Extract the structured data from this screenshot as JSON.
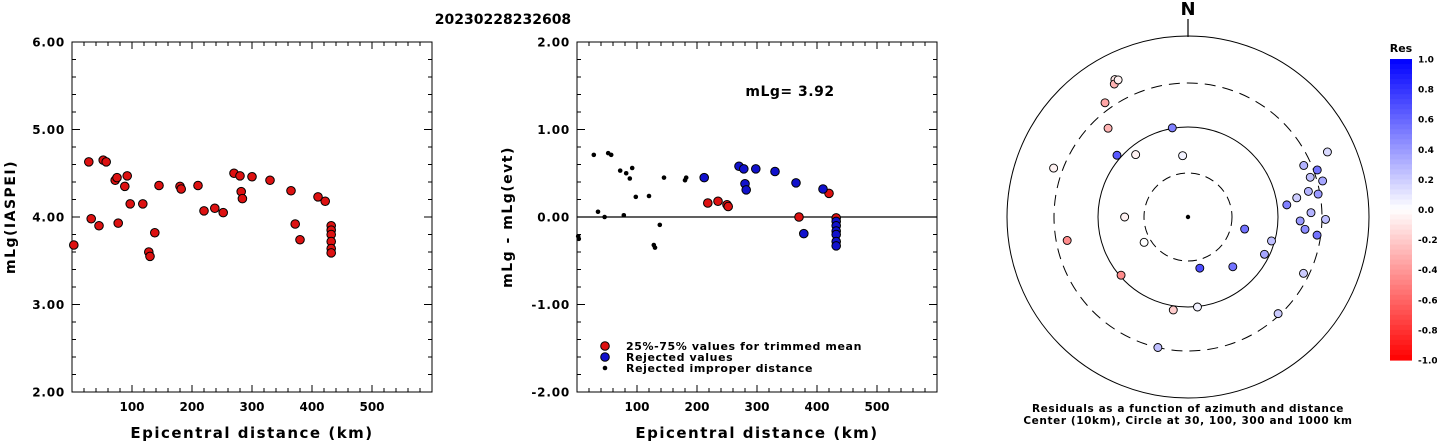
{
  "title": "20230228232608",
  "north_label": "N",
  "colors": {
    "red_fill": "#dd1111",
    "blue_fill": "#1111cc",
    "axis": "#000000"
  },
  "chart_data": [
    {
      "type": "scatter",
      "ylabel": "mLg(IASPEI)",
      "xlabel": "Epicentral distance (km)",
      "xlim": [
        0,
        600
      ],
      "ylim": [
        2.0,
        6.0
      ],
      "xticks": [
        "100",
        "200",
        "300",
        "400",
        "500"
      ],
      "yticks": [
        "2.00",
        "3.00",
        "4.00",
        "5.00",
        "6.00"
      ],
      "series": [
        {
          "points": [
            [
              3,
              3.68
            ],
            [
              28,
              4.63
            ],
            [
              32,
              3.98
            ],
            [
              45,
              3.9
            ],
            [
              52,
              4.65
            ],
            [
              57,
              4.63
            ],
            [
              72,
              4.42
            ],
            [
              75,
              4.45
            ],
            [
              77,
              3.93
            ],
            [
              88,
              4.35
            ],
            [
              92,
              4.47
            ],
            [
              97,
              4.15
            ],
            [
              118,
              4.15
            ],
            [
              128,
              3.6
            ],
            [
              130,
              3.55
            ],
            [
              138,
              3.82
            ],
            [
              145,
              4.36
            ],
            [
              180,
              4.35
            ],
            [
              182,
              4.32
            ],
            [
              210,
              4.36
            ],
            [
              220,
              4.07
            ],
            [
              238,
              4.1
            ],
            [
              252,
              4.05
            ],
            [
              270,
              4.5
            ],
            [
              280,
              4.47
            ],
            [
              282,
              4.29
            ],
            [
              284,
              4.21
            ],
            [
              300,
              4.46
            ],
            [
              330,
              4.42
            ],
            [
              365,
              4.3
            ],
            [
              372,
              3.92
            ],
            [
              380,
              3.74
            ],
            [
              410,
              4.23
            ],
            [
              422,
              4.18
            ],
            [
              432,
              3.9
            ],
            [
              432,
              3.85
            ],
            [
              432,
              3.8
            ],
            [
              432,
              3.72
            ],
            [
              432,
              3.64
            ],
            [
              432,
              3.59
            ]
          ]
        }
      ]
    },
    {
      "type": "scatter",
      "ylabel": "mLg - mLg(evt)",
      "xlabel": "Epicentral distance (km)",
      "xlim": [
        0,
        600
      ],
      "ylim": [
        -2.0,
        2.0
      ],
      "xticks": [
        "100",
        "200",
        "300",
        "400",
        "500"
      ],
      "yticks": [
        "-2.00",
        "-1.00",
        "0.00",
        "1.00",
        "2.00"
      ],
      "annotation": "mLg= 3.92",
      "reference_line": 0.0,
      "legend": [
        {
          "label": "25%-75% values for trimmed mean",
          "marker": "red"
        },
        {
          "label": "Rejected values",
          "marker": "blue"
        },
        {
          "label": "Rejected improper distance",
          "marker": "dot"
        }
      ],
      "series": [
        {
          "marker": "red",
          "points": [
            [
              218,
              0.16
            ],
            [
              235,
              0.18
            ],
            [
              250,
              0.14
            ],
            [
              252,
              0.12
            ],
            [
              370,
              0.0
            ],
            [
              420,
              0.27
            ],
            [
              432,
              -0.01
            ]
          ]
        },
        {
          "marker": "blue",
          "points": [
            [
              212,
              0.45
            ],
            [
              270,
              0.58
            ],
            [
              278,
              0.55
            ],
            [
              280,
              0.38
            ],
            [
              282,
              0.31
            ],
            [
              298,
              0.55
            ],
            [
              330,
              0.52
            ],
            [
              365,
              0.39
            ],
            [
              378,
              -0.19
            ],
            [
              410,
              0.32
            ],
            [
              432,
              -0.05
            ],
            [
              432,
              -0.1
            ],
            [
              432,
              -0.16
            ],
            [
              432,
              -0.2
            ],
            [
              432,
              -0.28
            ],
            [
              432,
              -0.33
            ]
          ]
        },
        {
          "marker": "dot",
          "points": [
            [
              2,
              -0.22
            ],
            [
              3,
              -0.25
            ],
            [
              28,
              0.71
            ],
            [
              35,
              0.06
            ],
            [
              46,
              0.0
            ],
            [
              52,
              0.73
            ],
            [
              57,
              0.71
            ],
            [
              72,
              0.53
            ],
            [
              78,
              0.02
            ],
            [
              82,
              0.5
            ],
            [
              88,
              0.44
            ],
            [
              92,
              0.56
            ],
            [
              98,
              0.23
            ],
            [
              120,
              0.24
            ],
            [
              128,
              -0.32
            ],
            [
              130,
              -0.35
            ],
            [
              138,
              -0.09
            ],
            [
              145,
              0.45
            ],
            [
              180,
              0.42
            ],
            [
              182,
              0.45
            ]
          ]
        }
      ]
    },
    {
      "type": "polar-scatter",
      "caption_line1": "Residuals as a function of azimuth and distance",
      "caption_line2": "Center (10km), Circle at 30, 100, 300 and 1000 km",
      "colorbar_title": "Res",
      "colorbar_ticks": [
        "1.0",
        "0.8",
        "0.6",
        "0.4",
        "0.2",
        "0.0",
        "-0.2",
        "-0.4",
        "-0.6",
        "-0.8",
        "-1.0"
      ],
      "points": [
        {
          "az": 65,
          "r": 0.85,
          "res": 0.15
        },
        {
          "az": 70,
          "r": 0.76,
          "res": 0.55
        },
        {
          "az": 66,
          "r": 0.7,
          "res": 0.3
        },
        {
          "az": 72,
          "r": 0.71,
          "res": 0.25
        },
        {
          "az": 75,
          "r": 0.77,
          "res": 0.35
        },
        {
          "az": 78,
          "r": 0.68,
          "res": 0.3
        },
        {
          "az": 80,
          "r": 0.73,
          "res": 0.4
        },
        {
          "az": 80,
          "r": 0.61,
          "res": 0.2
        },
        {
          "az": 83,
          "r": 0.55,
          "res": 0.5
        },
        {
          "az": 88,
          "r": 0.68,
          "res": 0.3
        },
        {
          "az": 91,
          "r": 0.76,
          "res": 0.25
        },
        {
          "az": 92,
          "r": 0.62,
          "res": 0.4
        },
        {
          "az": 96,
          "r": 0.65,
          "res": 0.45
        },
        {
          "az": 98,
          "r": 0.72,
          "res": 0.55
        },
        {
          "az": 106,
          "r": 0.48,
          "res": 0.25
        },
        {
          "az": 102,
          "r": 0.32,
          "res": 0.55
        },
        {
          "az": 116,
          "r": 0.47,
          "res": 0.35
        },
        {
          "az": 116,
          "r": 0.71,
          "res": 0.2
        },
        {
          "az": 137,
          "r": 0.73,
          "res": 0.2
        },
        {
          "az": 138,
          "r": 0.37,
          "res": 0.55
        },
        {
          "az": 167,
          "r": 0.29,
          "res": 0.7
        },
        {
          "az": 174,
          "r": 0.5,
          "res": 0.05
        },
        {
          "az": 189,
          "r": 0.52,
          "res": -0.2
        },
        {
          "az": 193,
          "r": 0.74,
          "res": 0.25
        },
        {
          "az": 229,
          "r": 0.49,
          "res": -0.45
        },
        {
          "az": 240,
          "r": 0.28,
          "res": 0.0
        },
        {
          "az": 259,
          "r": 0.68,
          "res": -0.45
        },
        {
          "az": 270,
          "r": 0.35,
          "res": -0.05
        },
        {
          "az": 290,
          "r": 0.79,
          "res": -0.05
        },
        {
          "az": 320,
          "r": 0.45,
          "res": -0.05
        },
        {
          "az": 311,
          "r": 0.52,
          "res": 0.65
        },
        {
          "az": 324,
          "r": 0.78,
          "res": -0.35
        },
        {
          "az": 318,
          "r": 0.66,
          "res": -0.3
        },
        {
          "az": 332,
          "r": 0.86,
          "res": -0.1
        },
        {
          "az": 331,
          "r": 0.84,
          "res": -0.3
        },
        {
          "az": 333,
          "r": 0.85,
          "res": -0.05
        },
        {
          "az": 350,
          "r": 0.5,
          "res": 0.5
        },
        {
          "az": 355,
          "r": 0.34,
          "res": 0.05
        }
      ]
    }
  ]
}
